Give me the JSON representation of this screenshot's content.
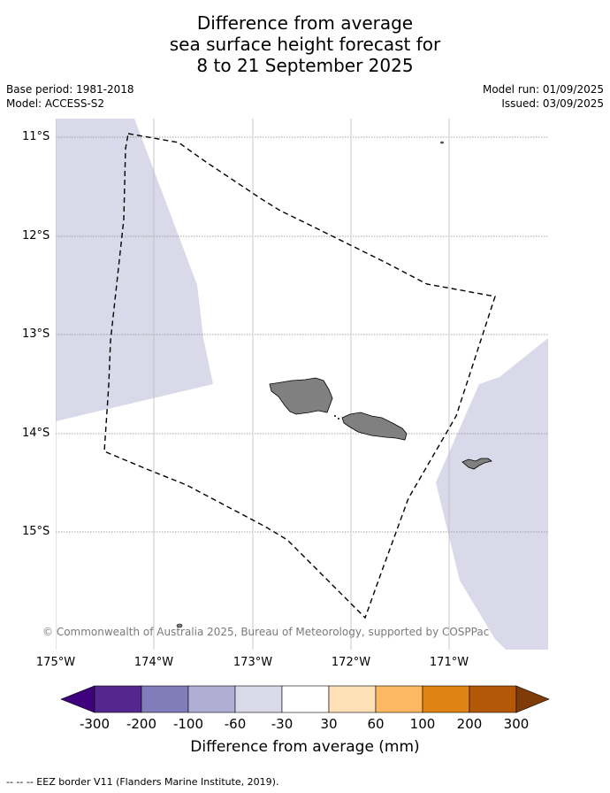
{
  "title": {
    "line1": "Difference from average",
    "line2": "sea surface height forecast for",
    "line3": "8 to 21 September 2025"
  },
  "meta_left": {
    "base_period": "Base period: 1981-2018",
    "model": "Model: ACCESS-S2"
  },
  "meta_right": {
    "model_run": "Model run: 01/09/2025",
    "issued": "Issued: 03/09/2025"
  },
  "map": {
    "lat_labels": [
      "11°S",
      "12°S",
      "13°S",
      "14°S",
      "15°S"
    ],
    "lon_labels": [
      "175°W",
      "174°W",
      "173°W",
      "172°W",
      "171°W"
    ],
    "land_color": "#808080",
    "anomaly_fill_color": "#d9d9ea",
    "eez_border_style": "dashed black line",
    "copyright": "© Commonwealth of Australia 2025, Bureau of Meteorology, supported by COSPPac"
  },
  "colorbar": {
    "ticks": [
      "-300",
      "-200",
      "-100",
      "-60",
      "-30",
      "30",
      "60",
      "100",
      "200",
      "300"
    ],
    "colors": [
      "#3f007d",
      "#54278f",
      "#807dba",
      "#b1aed3",
      "#d9d9ea",
      "#ffffff",
      "#fee0b6",
      "#fdb863",
      "#e08214",
      "#b35806",
      "#7f3b08"
    ],
    "label": "Difference from average (mm)"
  },
  "footer": "--  --  -- EEZ border V11 (Flanders Marine Institute, 2019)."
}
